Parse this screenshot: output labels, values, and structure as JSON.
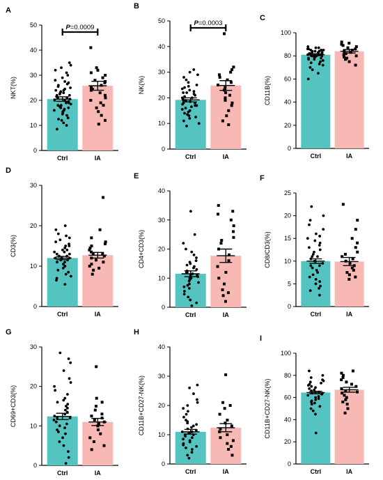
{
  "colors": {
    "ctrl": "#55c4c0",
    "ia": "#f8b9b4",
    "points": "#000000"
  },
  "chart_data": [
    {
      "type": "bar",
      "panel": "A",
      "ylabel": "NKT(%)",
      "ylim": [
        0,
        50
      ],
      "yticks": [
        0,
        10,
        20,
        30,
        40,
        50
      ],
      "categories": [
        "Ctrl",
        "IA"
      ],
      "values": [
        20.5,
        25.8
      ],
      "sem": [
        0.9,
        1.8
      ],
      "significance": {
        "label": "P",
        "value": "=0.0009"
      },
      "points": {
        "Ctrl": [
          8.5,
          10,
          11,
          12,
          12.5,
          13,
          14,
          14.5,
          15,
          15.5,
          16,
          16,
          16.5,
          17,
          17,
          17.5,
          18,
          18,
          18.5,
          19,
          19,
          19.5,
          20,
          20,
          20.5,
          21,
          21,
          21.5,
          22,
          22,
          22.5,
          23,
          23,
          23.5,
          24,
          24,
          24.5,
          25,
          25.5,
          26,
          26.5,
          27,
          27.5,
          28,
          29,
          30,
          31,
          32,
          33,
          34,
          35
        ],
        "IA": [
          10.5,
          12,
          14,
          15.5,
          17,
          18,
          19,
          20,
          21,
          22,
          23,
          24,
          24.5,
          25,
          26,
          27,
          27.5,
          28,
          29,
          30,
          31,
          32,
          33,
          41
        ]
      }
    },
    {
      "type": "bar",
      "panel": "B",
      "ylabel": "NK(%)",
      "ylim": [
        0,
        50
      ],
      "yticks": [
        0,
        10,
        20,
        30,
        40,
        50
      ],
      "categories": [
        "Ctrl",
        "IA"
      ],
      "values": [
        19.2,
        24.8
      ],
      "sem": [
        0.8,
        1.9
      ],
      "significance": {
        "label": "P",
        "value": "=0.0003"
      },
      "points": {
        "Ctrl": [
          9,
          10,
          11,
          12,
          12.5,
          13,
          13.5,
          14,
          14.5,
          15,
          15.5,
          16,
          16.5,
          17,
          17,
          17.5,
          18,
          18,
          18.5,
          19,
          19,
          19.5,
          20,
          20,
          20.5,
          21,
          21.5,
          22,
          22,
          22.5,
          23,
          23.5,
          24,
          24.5,
          25,
          26,
          27,
          28,
          29,
          30,
          31
        ],
        "IA": [
          9.5,
          11,
          13,
          15,
          17,
          18,
          19,
          20,
          21,
          22,
          23,
          24,
          25,
          26,
          27,
          28,
          29,
          30,
          31,
          32,
          45
        ]
      }
    },
    {
      "type": "bar",
      "panel": "C",
      "ylabel": "CD11B(%)",
      "ylim": [
        0,
        100
      ],
      "yticks": [
        0,
        20,
        40,
        60,
        80,
        100
      ],
      "categories": [
        "Ctrl",
        "IA"
      ],
      "values": [
        81,
        84
      ],
      "sem": [
        0.8,
        1.5
      ],
      "points": {
        "Ctrl": [
          60,
          65,
          68,
          70,
          72,
          73,
          74,
          75,
          76,
          77,
          77,
          78,
          78,
          79,
          79,
          80,
          80,
          80,
          81,
          81,
          81,
          82,
          82,
          82,
          83,
          83,
          83,
          84,
          84,
          84,
          85,
          85,
          85,
          86,
          86,
          87,
          87,
          88
        ],
        "IA": [
          72,
          75,
          77,
          78,
          79,
          80,
          81,
          82,
          83,
          84,
          85,
          86,
          87,
          88,
          89,
          90,
          91,
          92
        ]
      }
    },
    {
      "type": "bar",
      "panel": "D",
      "ylabel": "CD3(%)",
      "ylim": [
        0,
        30
      ],
      "yticks": [
        0,
        10,
        20,
        30
      ],
      "categories": [
        "Ctrl",
        "IA"
      ],
      "values": [
        12,
        12.7
      ],
      "sem": [
        0.4,
        0.7
      ],
      "points": {
        "Ctrl": [
          5.5,
          6.5,
          7,
          7.5,
          8,
          8.5,
          9,
          9.5,
          10,
          10,
          10.5,
          11,
          11,
          11.5,
          11.5,
          12,
          12,
          12,
          12.5,
          12.5,
          13,
          13,
          13.5,
          13.5,
          14,
          14,
          14.5,
          15,
          15,
          15.5,
          16,
          16.5,
          17,
          17.5,
          18,
          19,
          20
        ],
        "IA": [
          8,
          9,
          9.5,
          10,
          10.5,
          11,
          11.5,
          12,
          12.5,
          13,
          13,
          13.5,
          14,
          14.5,
          15,
          15.5,
          16,
          17,
          19,
          27
        ]
      }
    },
    {
      "type": "bar",
      "panel": "E",
      "ylabel": "CD4+CD3(%)",
      "ylim": [
        0,
        40
      ],
      "yticks": [
        0,
        10,
        20,
        30,
        40
      ],
      "categories": [
        "Ctrl",
        "IA"
      ],
      "values": [
        11.5,
        17.7
      ],
      "sem": [
        1.0,
        2.3
      ],
      "points": {
        "Ctrl": [
          0.5,
          1.5,
          2.5,
          3.5,
          4.5,
          5.5,
          6.5,
          7,
          7.5,
          8,
          8.5,
          9,
          9.5,
          10,
          10,
          10.5,
          11,
          11,
          11.5,
          12,
          12,
          12.5,
          13,
          13.5,
          14,
          14.5,
          15,
          15.5,
          16,
          17,
          18,
          19,
          20,
          22,
          25,
          33
        ],
        "IA": [
          2,
          4,
          5,
          6,
          8,
          10,
          12,
          14,
          16,
          18,
          20,
          22,
          23,
          24,
          26,
          28,
          30,
          32,
          33,
          35
        ]
      }
    },
    {
      "type": "bar",
      "panel": "F",
      "ylabel": "CD8/CD3(%)",
      "ylim": [
        0,
        25
      ],
      "yticks": [
        0,
        5,
        10,
        15,
        20,
        25
      ],
      "categories": [
        "Ctrl",
        "IA"
      ],
      "values": [
        10,
        9.9
      ],
      "sem": [
        0.5,
        0.9
      ],
      "points": {
        "Ctrl": [
          2.5,
          3.5,
          4,
          4.5,
          5,
          5.5,
          6,
          6.5,
          7,
          7.5,
          8,
          8.5,
          9,
          9,
          9.5,
          10,
          10,
          10.5,
          11,
          11,
          11.5,
          12,
          12.5,
          13,
          13.5,
          14,
          14.5,
          15,
          15.5,
          16,
          17,
          18,
          19,
          20,
          22
        ],
        "IA": [
          6,
          6.5,
          7,
          7.5,
          8,
          8.5,
          9,
          9.5,
          10,
          10.5,
          11,
          11.5,
          12,
          13,
          14,
          15,
          17,
          19,
          22.5
        ]
      }
    },
    {
      "type": "bar",
      "panel": "G",
      "ylabel": "CD69+CD3(%)",
      "ylim": [
        0,
        30
      ],
      "yticks": [
        0,
        10,
        20,
        30
      ],
      "categories": [
        "Ctrl",
        "IA"
      ],
      "values": [
        12.4,
        11
      ],
      "sem": [
        0.8,
        0.9
      ],
      "points": {
        "Ctrl": [
          0.5,
          2,
          3.5,
          5,
          6,
          7,
          8,
          8.5,
          9,
          9.5,
          10,
          10.5,
          11,
          11.5,
          12,
          12,
          12.5,
          13,
          13.5,
          14,
          14.5,
          15,
          15.5,
          16,
          16.5,
          17,
          18,
          19,
          20,
          21,
          22,
          24,
          26,
          27,
          28.5
        ],
        "IA": [
          4,
          5,
          6,
          7,
          8,
          9,
          10,
          10.5,
          11,
          11.5,
          12,
          12.5,
          13,
          14,
          15,
          16,
          17,
          25
        ]
      }
    },
    {
      "type": "bar",
      "panel": "H",
      "ylabel": "CD11B+CD27-NK(%)",
      "ylim": [
        0,
        40
      ],
      "yticks": [
        0,
        10,
        20,
        30,
        40
      ],
      "categories": [
        "Ctrl",
        "IA"
      ],
      "values": [
        11,
        12.4
      ],
      "sem": [
        0.8,
        1.4
      ],
      "points": {
        "Ctrl": [
          2,
          3,
          4,
          5,
          5.5,
          6,
          6.5,
          7,
          7.5,
          8,
          8.5,
          9,
          9.5,
          10,
          10,
          10.5,
          11,
          11,
          11.5,
          12,
          12.5,
          13,
          13.5,
          14,
          14.5,
          15,
          16,
          17,
          18,
          19,
          20,
          21,
          22,
          24,
          26,
          27
        ],
        "IA": [
          3,
          5,
          6,
          7,
          8,
          9,
          10,
          11,
          12,
          13,
          14,
          15,
          17,
          19,
          20,
          21,
          30.5
        ]
      }
    },
    {
      "type": "bar",
      "panel": "I",
      "ylabel": "CD11B+CD27-NK(%)",
      "ylim": [
        0,
        100
      ],
      "yticks": [
        0,
        20,
        40,
        60,
        80,
        100
      ],
      "categories": [
        "Ctrl",
        "IA"
      ],
      "values": [
        64.5,
        67
      ],
      "sem": [
        1.2,
        2.2
      ],
      "points": {
        "Ctrl": [
          28,
          45,
          48,
          50,
          52,
          54,
          55,
          56,
          57,
          58,
          59,
          60,
          61,
          62,
          63,
          64,
          64,
          65,
          65,
          66,
          67,
          68,
          69,
          70,
          71,
          72,
          73,
          74,
          75,
          76,
          78,
          80,
          84
        ],
        "IA": [
          46,
          50,
          54,
          56,
          58,
          60,
          62,
          64,
          65,
          66,
          68,
          70,
          72,
          74,
          76,
          78,
          80,
          82,
          84
        ]
      }
    }
  ]
}
